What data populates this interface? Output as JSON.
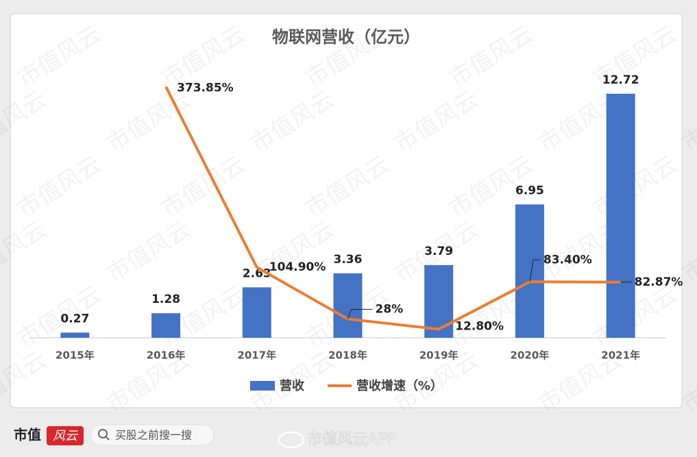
{
  "watermark": "市值风云",
  "footer": {
    "logo_text": "市值",
    "logo_mark": "风云",
    "search": "买股之前搜一搜",
    "app": "市值风云APP"
  },
  "chart_data": {
    "type": "bar",
    "title": "物联网营收（亿元）",
    "categories": [
      "2015年",
      "2016年",
      "2017年",
      "2018年",
      "2019年",
      "2020年",
      "2021年"
    ],
    "ylim": [
      0,
      14
    ],
    "y2lim": [
      0,
      400
    ],
    "series": [
      {
        "name": "营收",
        "color": "#4472C4",
        "values": [
          0.27,
          1.28,
          2.63,
          3.36,
          3.79,
          6.95,
          12.72
        ]
      },
      {
        "name": "营收增速（%）",
        "color": "#ED7D31",
        "type": "line",
        "axis": "y2",
        "values": [
          null,
          373.85,
          104.9,
          28,
          12.8,
          83.4,
          82.87
        ],
        "value_labels": [
          null,
          "373.85%",
          "104.90%",
          "28%",
          "12.80%",
          "83.40%",
          "82.87%"
        ]
      }
    ]
  }
}
